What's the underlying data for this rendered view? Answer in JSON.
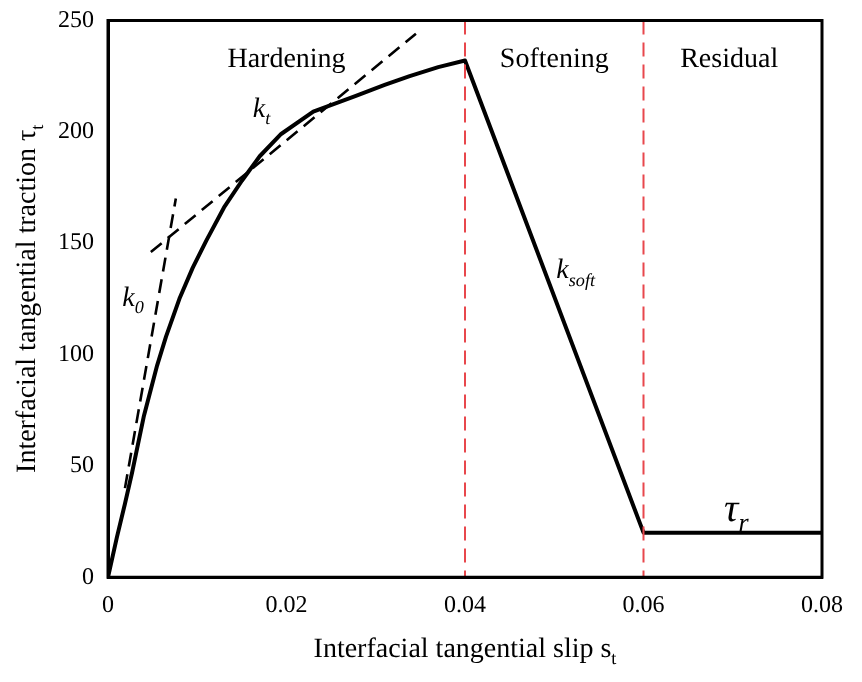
{
  "chart_data": {
    "type": "line",
    "xlabel": "Interfacial tangential slip s$_{t}$",
    "ylabel": "Interfacial tangential traction τ$_{t}$",
    "xlim": [
      0,
      0.08
    ],
    "ylim": [
      0,
      250
    ],
    "xticks": [
      0,
      0.02,
      0.04,
      0.06,
      0.08
    ],
    "yticks": [
      0,
      50,
      100,
      150,
      200,
      250
    ],
    "grid": false,
    "legend": false,
    "marker": "none",
    "series": [
      {
        "color": "#000000",
        "line_style": "solid",
        "x": [
          0,
          0.001,
          0.0019,
          0.0027,
          0.004,
          0.0055,
          0.0065,
          0.008,
          0.0095,
          0.011,
          0.013,
          0.015,
          0.017,
          0.0194,
          0.023,
          0.0277,
          0.031,
          0.0338,
          0.037,
          0.04,
          0.06,
          0.08
        ],
        "values": [
          0,
          18,
          33,
          47,
          72,
          95,
          108,
          125,
          139,
          151,
          166,
          178,
          189,
          199,
          209,
          216,
          221,
          225,
          229,
          232,
          20,
          20
        ]
      },
      {
        "color": "#000000",
        "line_style": "dashed",
        "x": [
          0.0019,
          0.0076
        ],
        "values": [
          40,
          170
        ]
      },
      {
        "color": "#000000",
        "line_style": "dashed",
        "x": [
          0.0048,
          0.0345
        ],
        "values": [
          146,
          244
        ]
      }
    ],
    "ref_lines": [
      {
        "axis": "x",
        "value": 0.04,
        "color": "#e8474c",
        "line_style": "dashed"
      },
      {
        "axis": "x",
        "value": 0.06,
        "color": "#e8474c",
        "line_style": "dashed"
      }
    ],
    "annotations": [
      "Hardening",
      "Softening",
      "Residual",
      "k$_{0}$",
      "k$_{t}$",
      "k$_{soft}$",
      "τ$_{r}$"
    ]
  }
}
